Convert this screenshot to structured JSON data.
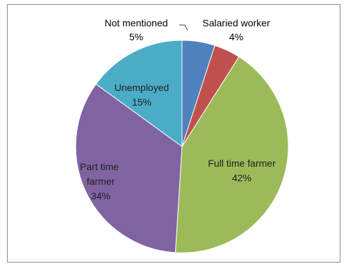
{
  "chart_data": {
    "type": "pie",
    "title": "",
    "slices": [
      {
        "name": "Not mentioned",
        "value": 5,
        "label": "5%",
        "color": "#4f81bd"
      },
      {
        "name": "Salaried worker",
        "value": 4,
        "label": "4%",
        "color": "#c0504d"
      },
      {
        "name": "Full time farmer",
        "value": 42,
        "label": "42%",
        "color": "#9bbb59"
      },
      {
        "name": "Part time farmer",
        "value": 34,
        "label": "34%",
        "color": "#8064a2"
      },
      {
        "name": "Unemployed",
        "value": 15,
        "label": "15%",
        "color": "#4bacc6"
      }
    ],
    "legend": "none",
    "start_angle_deg": 0,
    "direction": "clockwise"
  }
}
